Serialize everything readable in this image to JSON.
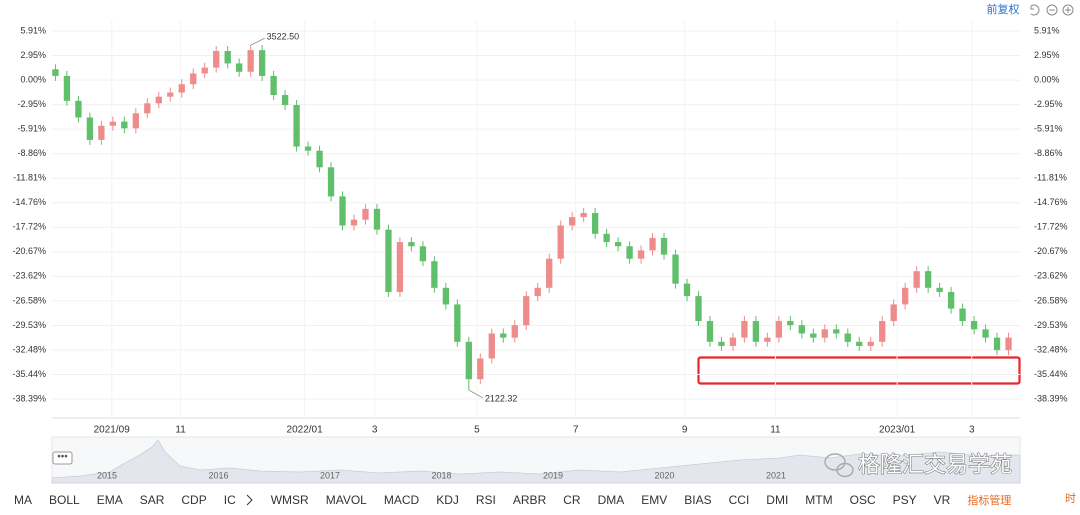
{
  "toolbar": {
    "adjust": "前复权"
  },
  "chart_data": {
    "type": "candlestick",
    "x": [
      0,
      1,
      2,
      3,
      4,
      5,
      6,
      7,
      8,
      9,
      10,
      11,
      12,
      13,
      14,
      15,
      16,
      17,
      18,
      19,
      20,
      21,
      22,
      23,
      24,
      25,
      26,
      27,
      28,
      29,
      30,
      31,
      32,
      33,
      34,
      35,
      36,
      37,
      38,
      39,
      40,
      41,
      42,
      43,
      44,
      45,
      46,
      47,
      48,
      49,
      50,
      51,
      52,
      53,
      54,
      55,
      56,
      57,
      58,
      59,
      60,
      61,
      62,
      63,
      64,
      65,
      66,
      67,
      68,
      69,
      70,
      71,
      72,
      73,
      74,
      75,
      76,
      77,
      78,
      79,
      80,
      81,
      82,
      83
    ],
    "open": [
      1.3,
      0.5,
      -2.5,
      -4.5,
      -7.2,
      -5.5,
      -5.0,
      -5.8,
      -4.0,
      -2.8,
      -2.0,
      -1.5,
      -0.5,
      0.8,
      1.5,
      3.5,
      2.0,
      1.0,
      3.6,
      0.5,
      -1.8,
      -3.0,
      -8.0,
      -8.5,
      -10.5,
      -14.0,
      -17.5,
      -16.8,
      -15.5,
      -18.0,
      -25.5,
      -19.5,
      -20.0,
      -21.8,
      -25.0,
      -27.0,
      -31.5,
      -36.0,
      -33.5,
      -30.5,
      -31.0,
      -29.5,
      -26.0,
      -25.0,
      -21.5,
      -17.5,
      -16.5,
      -16.0,
      -18.5,
      -19.5,
      -20.0,
      -21.5,
      -20.5,
      -19.0,
      -21.0,
      -24.5,
      -26.0,
      -29.0,
      -31.5,
      -32.0,
      -31.0,
      -29.0,
      -31.5,
      -31.0,
      -29.0,
      -29.5,
      -30.5,
      -31.0,
      -30.0,
      -30.5,
      -31.5,
      -32.0,
      -31.5,
      -29.0,
      -27.0,
      -25.0,
      -23.0,
      -25.0,
      -25.5,
      -27.5,
      -29.0,
      -30.0,
      -31.0,
      -32.5
    ],
    "high": [
      1.9,
      1.1,
      -1.9,
      -3.9,
      -4.9,
      -4.4,
      -4.4,
      -3.4,
      -2.2,
      -1.4,
      -0.9,
      0.1,
      1.4,
      2.1,
      4.1,
      4.1,
      2.6,
      4.2,
      4.2,
      1.1,
      -1.2,
      -2.4,
      -7.4,
      -7.9,
      -9.9,
      -13.4,
      -16.2,
      -14.9,
      -14.9,
      -17.4,
      -18.9,
      -18.9,
      -19.4,
      -21.2,
      -24.4,
      -26.4,
      -30.9,
      -32.9,
      -29.9,
      -29.9,
      -28.9,
      -25.4,
      -24.4,
      -20.9,
      -16.9,
      -15.9,
      -15.4,
      -15.4,
      -17.9,
      -18.9,
      -19.4,
      -19.9,
      -18.4,
      -18.4,
      -20.4,
      -23.9,
      -25.4,
      -28.4,
      -30.9,
      -30.4,
      -28.4,
      -28.4,
      -30.4,
      -28.4,
      -28.4,
      -28.9,
      -29.9,
      -29.4,
      -29.4,
      -29.9,
      -30.9,
      -30.9,
      -28.4,
      -26.4,
      -24.4,
      -22.4,
      -22.4,
      -24.4,
      -24.9,
      -26.9,
      -28.4,
      -29.4,
      -30.4,
      -30.4
    ],
    "low": [
      -0.1,
      -3.1,
      -5.1,
      -7.8,
      -7.8,
      -6.1,
      -6.4,
      -6.4,
      -4.6,
      -3.4,
      -2.6,
      -2.1,
      -1.1,
      0.2,
      0.9,
      1.4,
      0.4,
      0.4,
      -0.1,
      -2.4,
      -3.6,
      -8.6,
      -9.1,
      -11.1,
      -14.6,
      -18.1,
      -18.1,
      -17.4,
      -18.6,
      -26.1,
      -26.1,
      -20.6,
      -22.4,
      -25.6,
      -27.6,
      -32.1,
      -37.3,
      -36.6,
      -34.1,
      -31.6,
      -31.6,
      -30.1,
      -26.6,
      -25.6,
      -22.1,
      -18.1,
      -17.1,
      -19.1,
      -20.1,
      -20.6,
      -22.1,
      -22.1,
      -21.1,
      -21.6,
      -25.1,
      -26.6,
      -29.6,
      -32.1,
      -32.6,
      -32.6,
      -31.6,
      -32.1,
      -32.1,
      -31.6,
      -30.1,
      -31.1,
      -31.6,
      -31.6,
      -31.1,
      -32.1,
      -32.6,
      -32.6,
      -32.1,
      -29.6,
      -27.6,
      -25.6,
      -25.6,
      -26.1,
      -28.1,
      -29.6,
      -30.6,
      -31.6,
      -33.1,
      -33.1
    ],
    "close": [
      0.5,
      -2.5,
      -4.5,
      -7.2,
      -5.5,
      -5.0,
      -5.8,
      -4.0,
      -2.8,
      -2.0,
      -1.5,
      -0.5,
      0.8,
      1.5,
      3.5,
      2.0,
      1.0,
      3.6,
      0.5,
      -1.8,
      -3.0,
      -8.0,
      -8.5,
      -10.5,
      -14.0,
      -17.5,
      -16.8,
      -15.5,
      -18.0,
      -25.5,
      -19.5,
      -20.0,
      -21.8,
      -25.0,
      -27.0,
      -31.5,
      -36.0,
      -33.5,
      -30.5,
      -31.0,
      -29.5,
      -26.0,
      -25.0,
      -21.5,
      -17.5,
      -16.5,
      -16.0,
      -18.5,
      -19.5,
      -20.0,
      -21.5,
      -20.5,
      -19.0,
      -21.0,
      -24.5,
      -26.0,
      -29.0,
      -31.5,
      -32.0,
      -31.0,
      -29.0,
      -31.5,
      -31.0,
      -29.0,
      -29.5,
      -30.5,
      -31.0,
      -30.0,
      -30.5,
      -31.5,
      -32.0,
      -31.5,
      -29.0,
      -27.0,
      -25.0,
      -23.0,
      -25.0,
      -25.5,
      -27.5,
      -29.0,
      -30.0,
      -31.0,
      -32.5,
      -31.0
    ],
    "up_color": "#ee8c8c",
    "down_color": "#5fbf6a",
    "high_label": "3522.50",
    "low_label": "2122.32",
    "xlim": [
      -0.3,
      84
    ],
    "xticks": [
      {
        "value": 4.9,
        "label": "2021/09"
      },
      {
        "value": 10.9,
        "label": "11"
      },
      {
        "value": 21.7,
        "label": "2022/01"
      },
      {
        "value": 27.8,
        "label": "3"
      },
      {
        "value": 36.7,
        "label": "5"
      },
      {
        "value": 45.3,
        "label": "7"
      },
      {
        "value": 54.8,
        "label": "9"
      },
      {
        "value": 62.7,
        "label": "11"
      },
      {
        "value": 73.3,
        "label": "2023/01"
      },
      {
        "value": 79.8,
        "label": "3"
      }
    ],
    "ylim": [
      -40.67,
      7.23
    ],
    "yticks": [
      {
        "value": 5.91,
        "label": "5.91%"
      },
      {
        "value": 2.95,
        "label": "2.95%"
      },
      {
        "value": 0,
        "label": "0.00%"
      },
      {
        "value": -2.95,
        "label": "-2.95%"
      },
      {
        "value": -5.91,
        "label": "-5.91%"
      },
      {
        "value": -8.86,
        "label": "-8.86%"
      },
      {
        "value": -11.81,
        "label": "-11.81%"
      },
      {
        "value": -14.76,
        "label": "-14.76%"
      },
      {
        "value": -17.72,
        "label": "-17.72%"
      },
      {
        "value": -20.67,
        "label": "-20.67%"
      },
      {
        "value": -23.62,
        "label": "-23.62%"
      },
      {
        "value": -26.58,
        "label": "-26.58%"
      },
      {
        "value": -29.53,
        "label": "-29.53%"
      },
      {
        "value": -32.48,
        "label": "-32.48%"
      },
      {
        "value": -35.44,
        "label": "-35.44%"
      },
      {
        "value": -38.39,
        "label": "-38.39%"
      }
    ],
    "grid": true
  },
  "navigator": {
    "years": [
      "2015",
      "2016",
      "2017",
      "2018",
      "2019",
      "2020",
      "2021"
    ]
  },
  "indicators": [
    "MA",
    "BOLL",
    "EMA",
    "SAR",
    "CDP",
    "IC",
    "WMSR",
    "MAVOL",
    "MACD",
    "KDJ",
    "RSI",
    "ARBR",
    "CR",
    "DMA",
    "EMV",
    "BIAS",
    "CCI",
    "DMI",
    "MTM",
    "OSC",
    "PSY",
    "VR"
  ],
  "indicator_manage": "指标管理",
  "side_tab": "时",
  "watermark": "格隆汇交易学苑"
}
